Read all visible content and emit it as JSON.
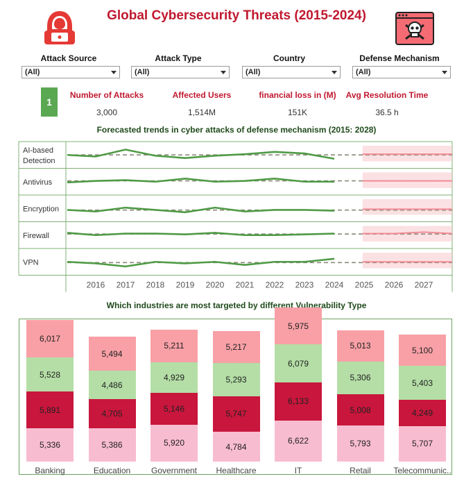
{
  "header": {
    "title": "Global Cybersecurity Threats (2015-2024)",
    "left_icon": "hacker-hood-icon",
    "right_icon": "skull-browser-icon"
  },
  "filters": [
    {
      "label": "Attack Source",
      "value": "(All)"
    },
    {
      "label": "Attack Type",
      "value": "(All)"
    },
    {
      "label": "Country",
      "value": "(All)"
    },
    {
      "label": "Defense Mechanism",
      "value": "(All)"
    }
  ],
  "kpis": {
    "badge": "1",
    "items": [
      {
        "label": "Number of Attacks",
        "value": "3,000"
      },
      {
        "label": "Affected Users",
        "value": "1,514M"
      },
      {
        "label": "financial loss in (M)",
        "value": "151K"
      },
      {
        "label": "Avg Resolution Time",
        "value": "36.5 h"
      }
    ]
  },
  "colors": {
    "accent_red": "#c0182f",
    "line_green": "#4f9a45",
    "trend_dash": "#8a8a7a",
    "forecast_band": "#f7c9cc",
    "forecast_line": "#f28c96",
    "seg_pink_light": "#f8bcd0",
    "seg_crimson": "#c8163c",
    "seg_green_light": "#b4dea6",
    "seg_salmon": "#f8a0a6"
  },
  "forecast_chart": {
    "title": "Forecasted trends in cyber attacks of  defense mechanism (2015: 2028)",
    "years": [
      "2016",
      "2017",
      "2018",
      "2019",
      "2020",
      "2021",
      "2022",
      "2023",
      "2024",
      "2025",
      "2026",
      "2027"
    ]
  },
  "chart_data": [
    {
      "type": "line",
      "title": "Forecasted trends in cyber attacks of  defense mechanism (2015: 2028)",
      "x": [
        2015,
        2016,
        2017,
        2018,
        2019,
        2020,
        2021,
        2022,
        2023,
        2024
      ],
      "forecast_x": [
        2025,
        2026,
        2027,
        2028
      ],
      "series": [
        {
          "name": "AI-based Detection",
          "values": [
            60,
            58,
            67,
            59,
            56,
            59,
            61,
            64,
            62,
            55
          ],
          "forecast": [
            61,
            61,
            61,
            61
          ]
        },
        {
          "name": "Antivirus",
          "values": [
            59,
            61,
            62,
            60,
            64,
            60,
            61,
            64,
            60,
            60
          ],
          "forecast": [
            61,
            61,
            61,
            61
          ]
        },
        {
          "name": "Encryption",
          "values": [
            58,
            56,
            61,
            58,
            55,
            61,
            56,
            58,
            58,
            57
          ],
          "forecast": [
            59,
            59,
            59,
            59
          ]
        },
        {
          "name": "Firewall",
          "values": [
            63,
            60,
            62,
            62,
            61,
            63,
            60,
            60,
            61,
            62
          ],
          "forecast": [
            62,
            62,
            64,
            62
          ]
        },
        {
          "name": "VPN",
          "values": [
            60,
            58,
            54,
            60,
            58,
            60,
            56,
            60,
            60,
            64
          ],
          "forecast": [
            60,
            60,
            60,
            60
          ]
        }
      ]
    },
    {
      "type": "bar",
      "stacked": true,
      "title": "Which industries are most targeted by different Vulnerability Type",
      "categories": [
        "Banking",
        "Education",
        "Government",
        "Healthcare",
        "IT",
        "Retail",
        "Telecommunic.."
      ],
      "series": [
        {
          "color": "#f8bcd0",
          "values": [
            5336,
            5386,
            5920,
            4784,
            6622,
            5793,
            5707
          ]
        },
        {
          "color": "#c8163c",
          "values": [
            5891,
            4705,
            5146,
            5747,
            6133,
            5008,
            4249
          ]
        },
        {
          "color": "#b4dea6",
          "values": [
            5528,
            4486,
            4929,
            5293,
            6079,
            5306,
            5403
          ]
        },
        {
          "color": "#f8a0a6",
          "values": [
            6017,
            5494,
            5211,
            5217,
            5975,
            5013,
            5100
          ]
        }
      ],
      "labels": [
        [
          "5,336",
          "5,386",
          "5,920",
          "4,784",
          "6,622",
          "5,793",
          "5,707"
        ],
        [
          "5,891",
          "4,705",
          "5,146",
          "5,747",
          "6,133",
          "5,008",
          "4,249"
        ],
        [
          "5,528",
          "4,486",
          "4,929",
          "5,293",
          "6,079",
          "5,306",
          "5,403"
        ],
        [
          "6,017",
          "5,494",
          "5,211",
          "5,217",
          "5,975",
          "5,013",
          "5,100"
        ]
      ]
    }
  ]
}
